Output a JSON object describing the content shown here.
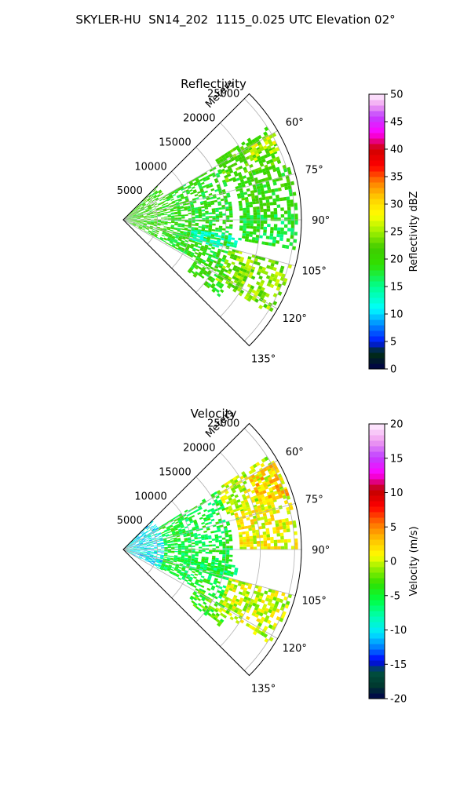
{
  "suptitle": "SKYLER-HU  SN14_202  1115_0.025 UTC Elevation 02°",
  "chart_data": [
    {
      "type": "heatmap",
      "subtype": "polar-sector",
      "title": "Reflectivity",
      "radial_label": "Meters",
      "radial_ticks": [
        5000,
        10000,
        15000,
        20000,
        25000
      ],
      "r_max": 26000,
      "azimuth_range_deg": [
        45,
        135
      ],
      "azimuth_ticks": [
        "60°",
        "75°",
        "90°",
        "105°",
        "120°",
        "135°"
      ],
      "grid": true,
      "colorbar": {
        "label": "Reflectivity dBZ",
        "ticks": [
          "0",
          "5",
          "10",
          "15",
          "20",
          "25",
          "30",
          "35",
          "40",
          "45",
          "50"
        ],
        "range": [
          0,
          50
        ]
      },
      "echo_regions": [
        {
          "az": [
            45,
            118
          ],
          "r": [
            0,
            7000
          ],
          "value": 20
        },
        {
          "az": [
            60,
            118
          ],
          "r": [
            7000,
            16000
          ],
          "value": 19
        },
        {
          "az": [
            57,
            70
          ],
          "r": [
            16000,
            25000
          ],
          "value": 22
        },
        {
          "az": [
            60,
            66
          ],
          "r": [
            21000,
            25500
          ],
          "value": 27
        },
        {
          "az": [
            70,
            90
          ],
          "r": [
            17000,
            25500
          ],
          "value": 20
        },
        {
          "az": [
            98,
            106
          ],
          "r": [
            10000,
            17000
          ],
          "value": 14
        },
        {
          "az": [
            105,
            122
          ],
          "r": [
            16000,
            25500
          ],
          "value": 24
        },
        {
          "az": [
            118,
            128
          ],
          "r": [
            12000,
            18000
          ],
          "value": 20
        },
        {
          "az": [
            88,
            100
          ],
          "r": [
            17000,
            25500
          ],
          "value": 18
        }
      ]
    },
    {
      "type": "heatmap",
      "subtype": "polar-sector",
      "title": "Velocity",
      "radial_label": "Meters",
      "radial_ticks": [
        5000,
        10000,
        15000,
        20000,
        25000
      ],
      "r_max": 26000,
      "azimuth_range_deg": [
        45,
        135
      ],
      "azimuth_ticks": [
        "60°",
        "75°",
        "90°",
        "105°",
        "120°",
        "135°"
      ],
      "grid": true,
      "colorbar": {
        "label": "Velocity (m/s)",
        "ticks": [
          "-20",
          "-15",
          "-10",
          "-5",
          "0",
          "5",
          "10",
          "15",
          "20"
        ],
        "range": [
          -20,
          20
        ]
      },
      "echo_regions": [
        {
          "az": [
            45,
            118
          ],
          "r": [
            0,
            6000
          ],
          "value": -10
        },
        {
          "az": [
            58,
            118
          ],
          "r": [
            6000,
            16000
          ],
          "value": -5
        },
        {
          "az": [
            57,
            72
          ],
          "r": [
            16000,
            25500
          ],
          "value": 0
        },
        {
          "az": [
            60,
            72
          ],
          "r": [
            21000,
            25500
          ],
          "value": 3
        },
        {
          "az": [
            72,
            90
          ],
          "r": [
            17000,
            25500
          ],
          "value": 1
        },
        {
          "az": [
            98,
            106
          ],
          "r": [
            10000,
            17000
          ],
          "value": -6
        },
        {
          "az": [
            105,
            122
          ],
          "r": [
            16000,
            25500
          ],
          "value": 0
        },
        {
          "az": [
            118,
            128
          ],
          "r": [
            12000,
            18000
          ],
          "value": -3
        }
      ]
    }
  ]
}
